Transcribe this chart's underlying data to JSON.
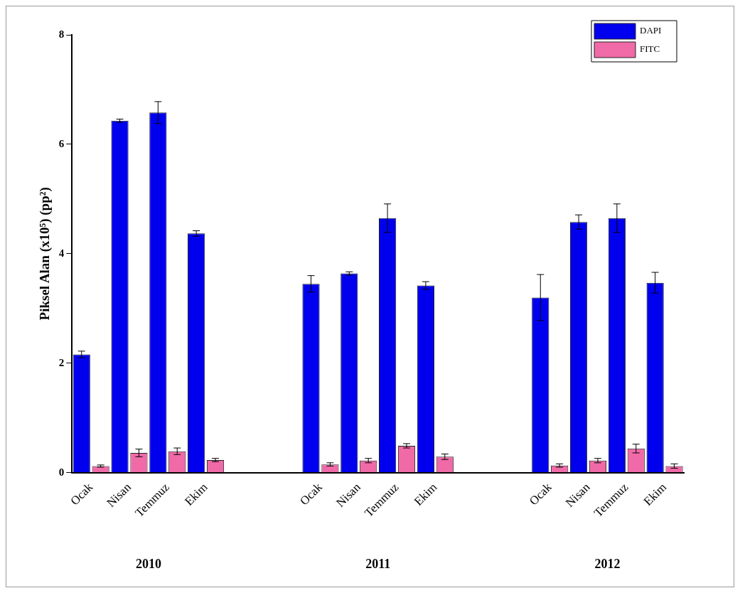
{
  "chart_data": {
    "type": "bar",
    "ylabel": "Piksel Alan (x10⁵) (pp²)",
    "categories": [
      "Ocak",
      "Nisan",
      "Temmuz",
      "Ekim",
      null,
      null,
      "Ocak",
      "Nisan",
      "Temmuz",
      "Ekim",
      null,
      null,
      "Ocak",
      "Nisan",
      "Temmuz",
      "Ekim"
    ],
    "series": [
      {
        "name": "DAPI",
        "color": "#0000ee",
        "values": [
          2.16,
          6.43,
          6.58,
          4.37,
          null,
          null,
          3.45,
          3.64,
          4.65,
          3.42,
          null,
          null,
          3.2,
          4.58,
          4.65,
          3.47
        ],
        "errors": [
          0.06,
          0.03,
          0.2,
          0.05,
          null,
          null,
          0.15,
          0.03,
          0.26,
          0.07,
          null,
          null,
          0.42,
          0.13,
          0.26,
          0.19
        ]
      },
      {
        "name": "FITC",
        "color": "#f06aa8",
        "values": [
          0.12,
          0.36,
          0.39,
          0.23,
          null,
          null,
          0.15,
          0.22,
          0.49,
          0.29,
          null,
          null,
          0.13,
          0.22,
          0.44,
          0.12
        ],
        "errors": [
          0.02,
          0.07,
          0.06,
          0.03,
          null,
          null,
          0.03,
          0.04,
          0.04,
          0.05,
          null,
          null,
          0.03,
          0.04,
          0.08,
          0.04
        ]
      }
    ],
    "ylim": [
      0,
      8
    ],
    "yticks": [
      0,
      2,
      4,
      6,
      8
    ],
    "grid": false,
    "legend": "top right",
    "annotations": [
      "2010",
      "2011",
      "2012"
    ]
  }
}
